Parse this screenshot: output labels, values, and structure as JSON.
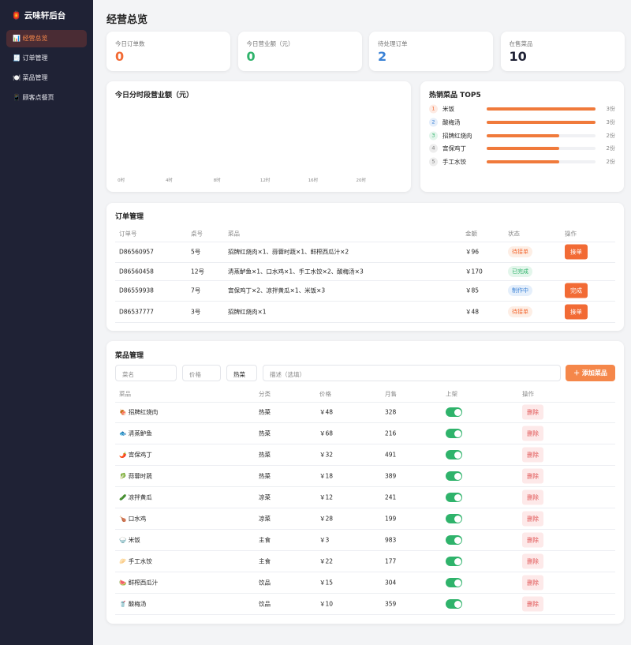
{
  "sidebar": {
    "logo": "🏮 云味轩后台",
    "nav": [
      "📊 经营总览",
      "🧾 订单管理",
      "🍽️ 菜品管理",
      "📱 顾客点餐页"
    ],
    "active": 0
  },
  "header": {
    "title": "经营总览"
  },
  "stats": [
    {
      "label": "今日订单数",
      "value": 0,
      "color": "#f26b35"
    },
    {
      "label": "今日营业额（元）",
      "value": 0,
      "color": "#2fb36b"
    },
    {
      "label": "待处理订单",
      "value": 2,
      "color": "#3b82d6"
    },
    {
      "label": "在售菜品",
      "value": 10,
      "color": "#1f2235"
    }
  ],
  "chart_data": {
    "type": "bar",
    "title": "今日分时段营业额（元）",
    "categories": [
      "0时",
      null,
      null,
      null,
      "4时",
      null,
      null,
      null,
      "8时",
      null,
      null,
      null,
      "12时",
      null,
      null,
      null,
      "16时",
      null,
      null,
      null,
      "20时",
      null,
      null,
      null
    ],
    "values": [
      0,
      0,
      0,
      0,
      0,
      0,
      0,
      0,
      0,
      0,
      0,
      0,
      0,
      0,
      0,
      0,
      0,
      0,
      0,
      0,
      0,
      0,
      0,
      0
    ],
    "color": "#f07a3b"
  },
  "top5": {
    "title": "热销菜品 TOP5",
    "bar_color": "#f07a3b",
    "items": [
      {
        "rank": 1,
        "name": "米饭",
        "count": 3,
        "label": "3份",
        "badge_color": "#f26b35"
      },
      {
        "rank": 2,
        "name": "酸梅汤",
        "count": 3,
        "label": "3份",
        "badge_color": "#3b82d6"
      },
      {
        "rank": 3,
        "name": "招牌红烧肉",
        "count": 2,
        "label": "2份",
        "badge_color": "#2fb36b"
      },
      {
        "rank": 4,
        "name": "宫保鸡丁",
        "count": 2,
        "label": "2份",
        "badge_color": "#777777"
      },
      {
        "rank": 5,
        "name": "手工水饺",
        "count": 2,
        "label": "2份",
        "badge_color": "#777777"
      }
    ]
  },
  "orders": {
    "title": "订单管理",
    "columns": [
      "订单号",
      "桌号",
      "菜品",
      "金额",
      "状态",
      "操作"
    ],
    "rows": [
      {
        "id": "D86560957",
        "table": "5号",
        "items": "招牌红烧肉×1、蒜蓉时蔬×1、鲜榨西瓜汁×2",
        "amount": "￥96",
        "status": "待接单",
        "status_color": "orange",
        "action": "接单"
      },
      {
        "id": "D86560458",
        "table": "12号",
        "items": "清蒸鲈鱼×1、口水鸡×1、手工水饺×2、酸梅汤×3",
        "amount": "￥170",
        "status": "已完成",
        "status_color": "green"
      },
      {
        "id": "D86559938",
        "table": "7号",
        "items": "宫保鸡丁×2、凉拌黄瓜×1、米饭×3",
        "amount": "￥85",
        "status": "制作中",
        "status_color": "blue",
        "action": "完成"
      },
      {
        "id": "D86537777",
        "table": "3号",
        "items": "招牌红烧肉×1",
        "amount": "￥48",
        "status": "待接单",
        "status_color": "orange",
        "action": "接单"
      }
    ]
  },
  "dishes": {
    "title": "菜品管理",
    "form": {
      "name": "菜名",
      "price": "价格",
      "category": "热菜",
      "desc": "描述（选填）",
      "submit": "＋ 添加菜品"
    },
    "columns": [
      "菜品",
      "分类",
      "价格",
      "月售",
      "上架",
      "操作"
    ],
    "rows": [
      {
        "name": "🍖 招牌红烧肉",
        "category": "热菜",
        "price": "￥48",
        "sales": 328,
        "listed": true,
        "action": "删除"
      },
      {
        "name": "🐟 清蒸鲈鱼",
        "category": "热菜",
        "price": "￥68",
        "sales": 216,
        "listed": true,
        "action": "删除"
      },
      {
        "name": "🌶️ 宫保鸡丁",
        "category": "热菜",
        "price": "￥32",
        "sales": 491,
        "listed": true,
        "action": "删除"
      },
      {
        "name": "🥬 蒜蓉时蔬",
        "category": "热菜",
        "price": "￥18",
        "sales": 389,
        "listed": true,
        "action": "删除"
      },
      {
        "name": "🥒 凉拌黄瓜",
        "category": "凉菜",
        "price": "￥12",
        "sales": 241,
        "listed": true,
        "action": "删除"
      },
      {
        "name": "🍗 口水鸡",
        "category": "凉菜",
        "price": "￥28",
        "sales": 199,
        "listed": true,
        "action": "删除"
      },
      {
        "name": "🍚 米饭",
        "category": "主食",
        "price": "￥3",
        "sales": 983,
        "listed": true,
        "action": "删除"
      },
      {
        "name": "🥟 手工水饺",
        "category": "主食",
        "price": "￥22",
        "sales": 177,
        "listed": true,
        "action": "删除"
      },
      {
        "name": "🍉 鲜榨西瓜汁",
        "category": "饮品",
        "price": "￥15",
        "sales": 304,
        "listed": true,
        "action": "删除"
      },
      {
        "name": "🥤 酸梅汤",
        "category": "饮品",
        "price": "￥10",
        "sales": 359,
        "listed": true,
        "action": "删除"
      }
    ]
  }
}
